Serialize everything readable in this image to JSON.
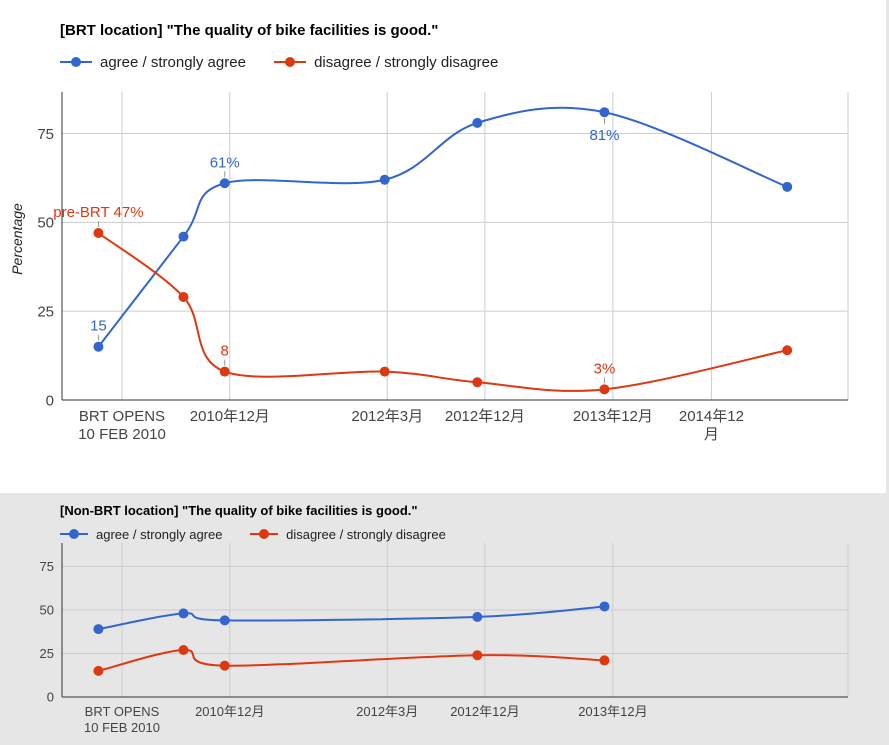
{
  "chart_data": [
    {
      "type": "line",
      "title": "[BRT location] \"The quality of bike facilities is good.\"",
      "ylabel": "Percentage",
      "ylim": [
        0,
        85
      ],
      "yticks": [
        0,
        25,
        50,
        75
      ],
      "grid": true,
      "legend_position": "top-left",
      "x_labels": [
        {
          "pos": 1,
          "lines": [
            "BRT OPENS",
            "10 FEB 2010"
          ]
        },
        {
          "pos": 2.28,
          "lines": [
            "2010年12月"
          ]
        },
        {
          "pos": 4.15,
          "lines": [
            "2012年3月"
          ]
        },
        {
          "pos": 5.31,
          "lines": [
            "2012年12月"
          ]
        },
        {
          "pos": 6.83,
          "lines": [
            "2013年12月"
          ]
        },
        {
          "pos": 8.0,
          "lines": [
            "2014年12",
            "月"
          ]
        }
      ],
      "series": [
        {
          "name": "agree / strongly agree",
          "color": "#3366cc",
          "points": [
            [
              0.72,
              15
            ],
            [
              1.73,
              46
            ],
            [
              2.22,
              61
            ],
            [
              4.12,
              62
            ],
            [
              5.22,
              78
            ],
            [
              6.73,
              81
            ],
            [
              8.9,
              60
            ]
          ],
          "annotations": [
            {
              "index": 0,
              "text": "15",
              "placement": "above"
            },
            {
              "index": 2,
              "text": "61%",
              "placement": "above"
            },
            {
              "index": 5,
              "text": "81%",
              "placement": "below"
            }
          ]
        },
        {
          "name": "disagree / strongly disagree",
          "color": "#dc3912",
          "points": [
            [
              0.72,
              47
            ],
            [
              1.73,
              29
            ],
            [
              2.22,
              8
            ],
            [
              4.12,
              8
            ],
            [
              5.22,
              5
            ],
            [
              6.73,
              3
            ],
            [
              8.9,
              14
            ]
          ],
          "annotations": [
            {
              "index": 0,
              "text": "pre-BRT 47%",
              "placement": "above"
            },
            {
              "index": 2,
              "text": "8",
              "placement": "above"
            },
            {
              "index": 5,
              "text": "3%",
              "placement": "above"
            }
          ]
        }
      ]
    },
    {
      "type": "line",
      "title": "[Non-BRT location] \"The quality of bike facilities is good.\"",
      "ylabel": "",
      "ylim": [
        0,
        85
      ],
      "yticks": [
        0,
        25,
        50,
        75
      ],
      "grid": true,
      "legend_position": "top-left",
      "x_labels": [
        {
          "pos": 1,
          "lines": [
            "BRT OPENS",
            "10 FEB 2010"
          ]
        },
        {
          "pos": 2.28,
          "lines": [
            "2010年12月"
          ]
        },
        {
          "pos": 4.15,
          "lines": [
            "2012年3月"
          ]
        },
        {
          "pos": 5.31,
          "lines": [
            "2012年12月"
          ]
        },
        {
          "pos": 6.83,
          "lines": [
            "2013年12月"
          ]
        }
      ],
      "series": [
        {
          "name": "agree / strongly agree",
          "color": "#3366cc",
          "points": [
            [
              0.72,
              39
            ],
            [
              1.73,
              48
            ],
            [
              2.22,
              44
            ],
            [
              5.22,
              46
            ],
            [
              6.73,
              52
            ]
          ],
          "annotations": []
        },
        {
          "name": "disagree / strongly disagree",
          "color": "#dc3912",
          "points": [
            [
              0.72,
              15
            ],
            [
              1.73,
              27
            ],
            [
              2.22,
              18
            ],
            [
              5.22,
              24
            ],
            [
              6.73,
              21
            ]
          ],
          "annotations": []
        }
      ]
    }
  ]
}
